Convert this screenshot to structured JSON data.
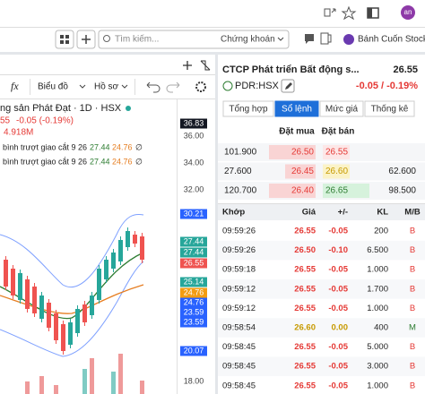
{
  "browser": {
    "avatar": "an"
  },
  "toolbar": {
    "search_placeholder": "Tìm kiếm...",
    "market": "Chứng khoán",
    "account": "Bánh Cuốn Stocks"
  },
  "chart_panel": {
    "fx": "fx",
    "menu": [
      "Biểu đồ",
      "Hồ sơ"
    ],
    "symbol": "ng sản Phát Đạt · 1D · HSX",
    "last": "55",
    "change": "-0.05 (-0.19%)",
    "volume": "4.918M",
    "indicators": [
      {
        "name": "bình trượt giao cắt 9 26",
        "fast": "27.44",
        "slow": "24.76",
        "cross": "∅"
      },
      {
        "name": "bình trượt giao cắt 9 26",
        "fast": "27.44",
        "slow": "24.76",
        "cross": "∅"
      }
    ],
    "price_axis": [
      {
        "label": "36.83",
        "kind": "last-high"
      },
      {
        "label": "36.00",
        "kind": "tick"
      },
      {
        "label": "34.00",
        "kind": "tick"
      },
      {
        "label": "32.00",
        "kind": "tick"
      },
      {
        "label": "30.21",
        "kind": "band"
      },
      {
        "label": "27.44",
        "kind": "green"
      },
      {
        "label": "27.44",
        "kind": "green"
      },
      {
        "label": "26.55",
        "kind": "red"
      },
      {
        "label": "25.14",
        "kind": "green"
      },
      {
        "label": "24.76",
        "kind": "orange"
      },
      {
        "label": "24.76",
        "kind": "band"
      },
      {
        "label": "23.59",
        "kind": "band"
      },
      {
        "label": "23.59",
        "kind": "band"
      },
      {
        "label": "20.07",
        "kind": "band"
      },
      {
        "label": "18.00",
        "kind": "tick"
      }
    ]
  },
  "quote_panel": {
    "name": "CTCP Phát triển Bất động s...",
    "price": "26.55",
    "ticker": "PDR:HSX",
    "change": "-0.05 / -0.19%",
    "tabs": [
      "Tổng hợp",
      "Sổ lệnh",
      "Mức giá",
      "Thống kê"
    ],
    "active_tab": 1,
    "book_headers": [
      "Đặt mua",
      "Đặt bán"
    ],
    "book": [
      [
        "101.900",
        "26.50",
        "26.55",
        ""
      ],
      [
        "27.600",
        "26.45",
        "26.60",
        "62.600"
      ],
      [
        "120.700",
        "26.40",
        "26.65",
        "98.500"
      ]
    ],
    "trade_headers": [
      "Khớp",
      "Giá",
      "+/-",
      "KL",
      "M/B"
    ],
    "trades": [
      [
        "09:59:26",
        "26.55",
        "-0.05",
        "200",
        "B"
      ],
      [
        "09:59:26",
        "26.50",
        "-0.10",
        "6.500",
        "B"
      ],
      [
        "09:59:18",
        "26.55",
        "-0.05",
        "1.000",
        "B"
      ],
      [
        "09:59:12",
        "26.55",
        "-0.05",
        "1.700",
        "B"
      ],
      [
        "09:59:12",
        "26.55",
        "-0.05",
        "1.000",
        "B"
      ],
      [
        "09:58:54",
        "26.60",
        "0.00",
        "400",
        "M"
      ],
      [
        "09:58:45",
        "26.55",
        "-0.05",
        "5.000",
        "B"
      ],
      [
        "09:58:45",
        "26.55",
        "-0.05",
        "3.000",
        "B"
      ],
      [
        "09:58:45",
        "26.55",
        "-0.05",
        "1.000",
        "B"
      ]
    ]
  }
}
